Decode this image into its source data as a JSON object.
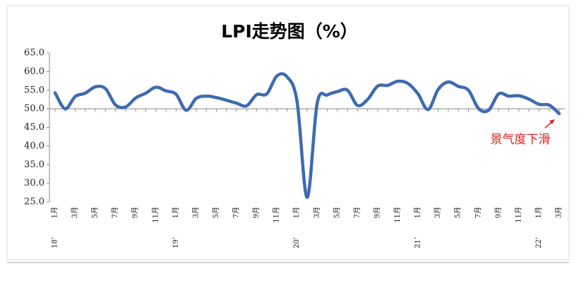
{
  "chart_data": {
    "type": "line",
    "title": "LPI走势图（%）",
    "categories": [
      "1月",
      null,
      "3月",
      null,
      "5月",
      null,
      "7月",
      null,
      "9月",
      null,
      "11月",
      null,
      "1月",
      null,
      "3月",
      null,
      "5月",
      null,
      "7月",
      null,
      "9月",
      null,
      "11月",
      null,
      "1月",
      null,
      "3月",
      null,
      "5月",
      null,
      "7月",
      null,
      "9月",
      null,
      "11月",
      null,
      "1月",
      null,
      "3月",
      null,
      "5月",
      null,
      "7月",
      null,
      "9月",
      null,
      "11月",
      null,
      "1月",
      null,
      "3月"
    ],
    "year_labels": [
      "18’",
      null,
      null,
      null,
      null,
      null,
      null,
      null,
      null,
      null,
      null,
      null,
      "19’",
      null,
      null,
      null,
      null,
      null,
      null,
      null,
      null,
      null,
      null,
      null,
      "20’",
      null,
      null,
      null,
      null,
      null,
      null,
      null,
      null,
      null,
      null,
      null,
      "21’",
      null,
      null,
      null,
      null,
      null,
      null,
      null,
      null,
      null,
      null,
      null,
      "22’",
      null,
      null
    ],
    "values": [
      54.3,
      50.0,
      53.3,
      54.2,
      55.9,
      55.4,
      51.0,
      50.5,
      52.9,
      54.2,
      55.8,
      54.8,
      53.9,
      49.6,
      52.8,
      53.4,
      53.0,
      52.3,
      51.5,
      50.8,
      53.8,
      54.0,
      58.8,
      58.6,
      52.0,
      26.2,
      51.5,
      53.7,
      54.6,
      55.0,
      50.9,
      52.5,
      56.1,
      56.3,
      57.4,
      56.8,
      54.0,
      49.8,
      55.2,
      57.2,
      56.0,
      55.0,
      50.1,
      49.6,
      54.0,
      53.4,
      53.5,
      52.6,
      51.2,
      51.0,
      48.7
    ],
    "color": "#3d6bb0",
    "ylim": [
      25,
      65
    ],
    "yticks": [
      {
        "value": 25,
        "label": "25.0"
      },
      {
        "value": 30,
        "label": "30.0"
      },
      {
        "value": 35,
        "label": "35.0"
      },
      {
        "value": 40,
        "label": "40.0"
      },
      {
        "value": 45,
        "label": "45.0"
      },
      {
        "value": 50,
        "label": "50.0"
      },
      {
        "value": 55,
        "label": "55.0"
      },
      {
        "value": 60,
        "label": "60.0"
      },
      {
        "value": 65,
        "label": "65.0"
      }
    ],
    "x_axis_at": 50,
    "annotation": {
      "text": "景气度下滑",
      "color": "#e02020"
    }
  }
}
